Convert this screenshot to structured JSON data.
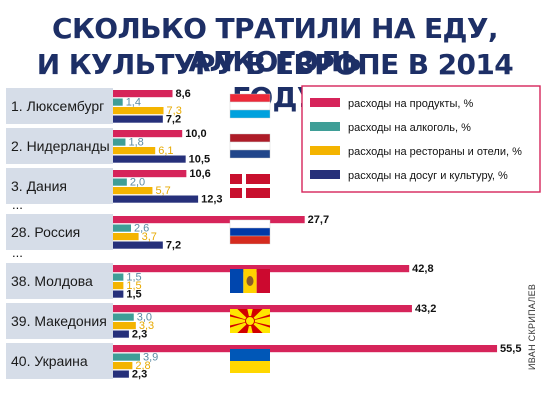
{
  "title_line1": "СКОЛЬКО ТРАТИЛИ НА ЕДУ, АЛКОГОЛЬ",
  "title_line2": "И КУЛЬТУРУ В ЕВРОПЕ В 2014 ГОДУ",
  "credit": "ИВАН СКРИПАЛЕВ",
  "ellipsis": "...",
  "colors": {
    "food": "#d6245a",
    "alcohol": "#3f9e97",
    "restaurants": "#f4b400",
    "leisure": "#26307a",
    "row_bg": "#d6dde8"
  },
  "chart_data": {
    "type": "bar",
    "orientation": "horizontal",
    "unit": "%",
    "series": [
      {
        "name": "расходы на продукты, %",
        "values": [
          8.6,
          10.0,
          10.6,
          27.7,
          42.8,
          43.2,
          55.5
        ]
      },
      {
        "name": "расходы на алкоголь, %",
        "values": [
          1.4,
          1.8,
          2.0,
          2.6,
          1.5,
          3.0,
          3.9
        ]
      },
      {
        "name": "расходы на рестораны и отели, %",
        "values": [
          7.3,
          6.1,
          5.7,
          3.7,
          1.5,
          3.3,
          2.8
        ]
      },
      {
        "name": "расходы на досуг и культуру, %",
        "values": [
          7.2,
          10.5,
          12.3,
          7.2,
          1.5,
          2.3,
          2.3
        ]
      }
    ],
    "categories": [
      "1. Люксембург",
      "2. Нидерланды",
      "3. Дания",
      "28. Россия",
      "38. Молдова",
      "39. Македония",
      "40. Украина"
    ],
    "value_labels": [
      [
        "8,6",
        "1,4",
        "7,3",
        "7,2"
      ],
      [
        "10,0",
        "1,8",
        "6,1",
        "10,5"
      ],
      [
        "10,6",
        "2,0",
        "5,7",
        "12,3"
      ],
      [
        "27,7",
        "2,6",
        "3,7",
        "7,2"
      ],
      [
        "42,8",
        "1,5",
        "1,5",
        "1,5"
      ],
      [
        "43,2",
        "3,0",
        "3,3",
        "2,3"
      ],
      [
        "55,5",
        "3,9",
        "2,8",
        "2,3"
      ]
    ],
    "flags": [
      "luxembourg",
      "netherlands",
      "denmark",
      "russia",
      "moldova",
      "north-macedonia",
      "ukraine"
    ],
    "legend_position": "top-right"
  }
}
